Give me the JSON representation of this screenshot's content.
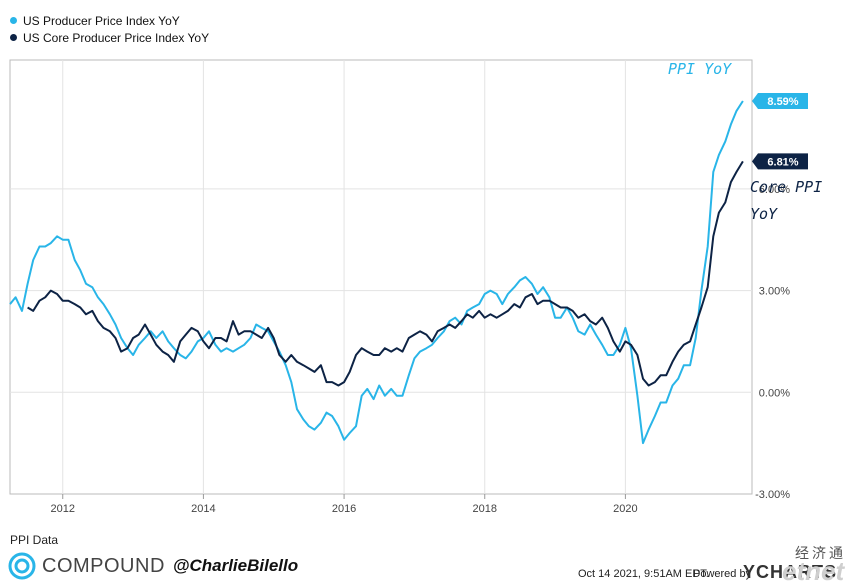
{
  "legend": {
    "items": [
      {
        "label": "US Producer Price Index YoY",
        "color": "#29b5e8"
      },
      {
        "label": "US Core Producer Price Index YoY",
        "color": "#0d2345"
      }
    ]
  },
  "annotations": {
    "ppi": "PPI YoY",
    "core_line1": "Core PPI",
    "core_line2": "YoY"
  },
  "footer": {
    "source": "PPI Data",
    "brand": "COMPOUND",
    "handle": "@CharlieBilello",
    "timestamp": "Oct 14 2021, 9:51AM EDT.",
    "powered": "Powered by",
    "provider": "YCHARTS",
    "watermark_cn": "经济通",
    "watermark_en": "etnet"
  },
  "chart_data": {
    "type": "line",
    "xlim": [
      2011.25,
      2021.8
    ],
    "ylim": [
      -3.0,
      9.8
    ],
    "x_ticks": [
      {
        "value": 2012,
        "label": "2012"
      },
      {
        "value": 2014,
        "label": "2014"
      },
      {
        "value": 2016,
        "label": "2016"
      },
      {
        "value": 2018,
        "label": "2018"
      },
      {
        "value": 2020,
        "label": "2020"
      }
    ],
    "y_ticks": [
      {
        "value": 6,
        "label": "6.00%"
      },
      {
        "value": 3,
        "label": "3.00%"
      },
      {
        "value": 0,
        "label": "0.00%"
      },
      {
        "value": -3,
        "label": "-3.00%"
      }
    ],
    "grid": true,
    "series": [
      {
        "name": "US Producer Price Index YoY",
        "color": "#29b5e8",
        "end_label": "8.59%",
        "points": [
          [
            2011.25,
            2.6
          ],
          [
            2011.33,
            2.8
          ],
          [
            2011.42,
            2.4
          ],
          [
            2011.5,
            3.2
          ],
          [
            2011.58,
            3.9
          ],
          [
            2011.67,
            4.3
          ],
          [
            2011.75,
            4.3
          ],
          [
            2011.83,
            4.4
          ],
          [
            2011.92,
            4.6
          ],
          [
            2012.0,
            4.5
          ],
          [
            2012.08,
            4.5
          ],
          [
            2012.17,
            3.9
          ],
          [
            2012.25,
            3.6
          ],
          [
            2012.33,
            3.2
          ],
          [
            2012.42,
            3.1
          ],
          [
            2012.5,
            2.8
          ],
          [
            2012.58,
            2.6
          ],
          [
            2012.67,
            2.3
          ],
          [
            2012.75,
            2.0
          ],
          [
            2012.83,
            1.6
          ],
          [
            2012.92,
            1.3
          ],
          [
            2013.0,
            1.1
          ],
          [
            2013.08,
            1.4
          ],
          [
            2013.17,
            1.6
          ],
          [
            2013.25,
            1.8
          ],
          [
            2013.33,
            1.6
          ],
          [
            2013.42,
            1.8
          ],
          [
            2013.5,
            1.5
          ],
          [
            2013.58,
            1.3
          ],
          [
            2013.67,
            1.1
          ],
          [
            2013.75,
            1.0
          ],
          [
            2013.83,
            1.2
          ],
          [
            2013.92,
            1.5
          ],
          [
            2014.0,
            1.6
          ],
          [
            2014.08,
            1.8
          ],
          [
            2014.17,
            1.4
          ],
          [
            2014.25,
            1.2
          ],
          [
            2014.33,
            1.3
          ],
          [
            2014.42,
            1.2
          ],
          [
            2014.5,
            1.3
          ],
          [
            2014.58,
            1.4
          ],
          [
            2014.67,
            1.6
          ],
          [
            2014.75,
            2.0
          ],
          [
            2014.83,
            1.9
          ],
          [
            2014.92,
            1.8
          ],
          [
            2015.0,
            1.5
          ],
          [
            2015.08,
            1.2
          ],
          [
            2015.17,
            0.8
          ],
          [
            2015.25,
            0.3
          ],
          [
            2015.33,
            -0.5
          ],
          [
            2015.42,
            -0.8
          ],
          [
            2015.5,
            -1.0
          ],
          [
            2015.58,
            -1.1
          ],
          [
            2015.67,
            -0.9
          ],
          [
            2015.75,
            -0.6
          ],
          [
            2015.83,
            -0.7
          ],
          [
            2015.92,
            -1.0
          ],
          [
            2016.0,
            -1.4
          ],
          [
            2016.08,
            -1.2
          ],
          [
            2016.17,
            -1.0
          ],
          [
            2016.25,
            -0.1
          ],
          [
            2016.33,
            0.1
          ],
          [
            2016.42,
            -0.2
          ],
          [
            2016.5,
            0.2
          ],
          [
            2016.58,
            -0.1
          ],
          [
            2016.67,
            0.1
          ],
          [
            2016.75,
            -0.1
          ],
          [
            2016.83,
            -0.1
          ],
          [
            2016.92,
            0.5
          ],
          [
            2017.0,
            1.0
          ],
          [
            2017.08,
            1.2
          ],
          [
            2017.17,
            1.3
          ],
          [
            2017.25,
            1.4
          ],
          [
            2017.33,
            1.6
          ],
          [
            2017.42,
            1.8
          ],
          [
            2017.5,
            2.1
          ],
          [
            2017.58,
            2.2
          ],
          [
            2017.67,
            2.0
          ],
          [
            2017.75,
            2.4
          ],
          [
            2017.83,
            2.5
          ],
          [
            2017.92,
            2.6
          ],
          [
            2018.0,
            2.9
          ],
          [
            2018.08,
            3.0
          ],
          [
            2018.17,
            2.9
          ],
          [
            2018.25,
            2.6
          ],
          [
            2018.33,
            2.9
          ],
          [
            2018.42,
            3.1
          ],
          [
            2018.5,
            3.3
          ],
          [
            2018.58,
            3.4
          ],
          [
            2018.67,
            3.2
          ],
          [
            2018.75,
            2.9
          ],
          [
            2018.83,
            3.1
          ],
          [
            2018.92,
            2.8
          ],
          [
            2019.0,
            2.2
          ],
          [
            2019.08,
            2.2
          ],
          [
            2019.17,
            2.5
          ],
          [
            2019.25,
            2.2
          ],
          [
            2019.33,
            1.8
          ],
          [
            2019.42,
            1.7
          ],
          [
            2019.5,
            2.0
          ],
          [
            2019.58,
            1.7
          ],
          [
            2019.67,
            1.4
          ],
          [
            2019.75,
            1.1
          ],
          [
            2019.83,
            1.1
          ],
          [
            2019.92,
            1.4
          ],
          [
            2020.0,
            1.9
          ],
          [
            2020.08,
            1.3
          ],
          [
            2020.17,
            -0.1
          ],
          [
            2020.25,
            -1.5
          ],
          [
            2020.33,
            -1.1
          ],
          [
            2020.42,
            -0.7
          ],
          [
            2020.5,
            -0.3
          ],
          [
            2020.58,
            -0.3
          ],
          [
            2020.67,
            0.2
          ],
          [
            2020.75,
            0.4
          ],
          [
            2020.83,
            0.8
          ],
          [
            2020.92,
            0.8
          ],
          [
            2021.0,
            1.6
          ],
          [
            2021.08,
            3.0
          ],
          [
            2021.17,
            4.3
          ],
          [
            2021.25,
            6.5
          ],
          [
            2021.33,
            7.0
          ],
          [
            2021.42,
            7.4
          ],
          [
            2021.5,
            7.9
          ],
          [
            2021.58,
            8.3
          ],
          [
            2021.67,
            8.59
          ]
        ]
      },
      {
        "name": "US Core Producer Price Index YoY",
        "color": "#0d2345",
        "end_label": "6.81%",
        "points": [
          [
            2011.5,
            2.5
          ],
          [
            2011.58,
            2.4
          ],
          [
            2011.67,
            2.7
          ],
          [
            2011.75,
            2.8
          ],
          [
            2011.83,
            3.0
          ],
          [
            2011.92,
            2.9
          ],
          [
            2012.0,
            2.7
          ],
          [
            2012.08,
            2.7
          ],
          [
            2012.17,
            2.6
          ],
          [
            2012.25,
            2.5
          ],
          [
            2012.33,
            2.3
          ],
          [
            2012.42,
            2.4
          ],
          [
            2012.5,
            2.1
          ],
          [
            2012.58,
            1.9
          ],
          [
            2012.67,
            1.8
          ],
          [
            2012.75,
            1.6
          ],
          [
            2012.83,
            1.2
          ],
          [
            2012.92,
            1.3
          ],
          [
            2013.0,
            1.6
          ],
          [
            2013.08,
            1.7
          ],
          [
            2013.17,
            2.0
          ],
          [
            2013.25,
            1.7
          ],
          [
            2013.33,
            1.4
          ],
          [
            2013.42,
            1.2
          ],
          [
            2013.5,
            1.1
          ],
          [
            2013.58,
            0.9
          ],
          [
            2013.67,
            1.5
          ],
          [
            2013.75,
            1.7
          ],
          [
            2013.83,
            1.9
          ],
          [
            2013.92,
            1.8
          ],
          [
            2014.0,
            1.5
          ],
          [
            2014.08,
            1.3
          ],
          [
            2014.17,
            1.6
          ],
          [
            2014.25,
            1.6
          ],
          [
            2014.33,
            1.5
          ],
          [
            2014.42,
            2.1
          ],
          [
            2014.5,
            1.7
          ],
          [
            2014.58,
            1.8
          ],
          [
            2014.67,
            1.8
          ],
          [
            2014.75,
            1.7
          ],
          [
            2014.83,
            1.6
          ],
          [
            2014.92,
            1.9
          ],
          [
            2015.0,
            1.6
          ],
          [
            2015.08,
            1.1
          ],
          [
            2015.17,
            0.9
          ],
          [
            2015.25,
            1.1
          ],
          [
            2015.33,
            0.9
          ],
          [
            2015.42,
            0.8
          ],
          [
            2015.5,
            0.7
          ],
          [
            2015.58,
            0.6
          ],
          [
            2015.67,
            0.8
          ],
          [
            2015.75,
            0.3
          ],
          [
            2015.83,
            0.3
          ],
          [
            2015.92,
            0.2
          ],
          [
            2016.0,
            0.3
          ],
          [
            2016.08,
            0.6
          ],
          [
            2016.17,
            1.1
          ],
          [
            2016.25,
            1.3
          ],
          [
            2016.33,
            1.2
          ],
          [
            2016.42,
            1.1
          ],
          [
            2016.5,
            1.1
          ],
          [
            2016.58,
            1.3
          ],
          [
            2016.67,
            1.2
          ],
          [
            2016.75,
            1.3
          ],
          [
            2016.83,
            1.2
          ],
          [
            2016.92,
            1.6
          ],
          [
            2017.0,
            1.7
          ],
          [
            2017.08,
            1.8
          ],
          [
            2017.17,
            1.7
          ],
          [
            2017.25,
            1.5
          ],
          [
            2017.33,
            1.8
          ],
          [
            2017.42,
            1.9
          ],
          [
            2017.5,
            2.0
          ],
          [
            2017.58,
            1.9
          ],
          [
            2017.67,
            2.1
          ],
          [
            2017.75,
            2.3
          ],
          [
            2017.83,
            2.2
          ],
          [
            2017.92,
            2.4
          ],
          [
            2018.0,
            2.2
          ],
          [
            2018.08,
            2.3
          ],
          [
            2018.17,
            2.2
          ],
          [
            2018.25,
            2.3
          ],
          [
            2018.33,
            2.4
          ],
          [
            2018.42,
            2.6
          ],
          [
            2018.5,
            2.5
          ],
          [
            2018.58,
            2.8
          ],
          [
            2018.67,
            2.9
          ],
          [
            2018.75,
            2.6
          ],
          [
            2018.83,
            2.7
          ],
          [
            2018.92,
            2.7
          ],
          [
            2019.0,
            2.6
          ],
          [
            2019.08,
            2.5
          ],
          [
            2019.17,
            2.5
          ],
          [
            2019.25,
            2.4
          ],
          [
            2019.33,
            2.2
          ],
          [
            2019.42,
            2.3
          ],
          [
            2019.5,
            2.1
          ],
          [
            2019.58,
            2.0
          ],
          [
            2019.67,
            2.2
          ],
          [
            2019.75,
            1.9
          ],
          [
            2019.83,
            1.5
          ],
          [
            2019.92,
            1.2
          ],
          [
            2020.0,
            1.5
          ],
          [
            2020.08,
            1.4
          ],
          [
            2020.17,
            1.1
          ],
          [
            2020.25,
            0.4
          ],
          [
            2020.33,
            0.2
          ],
          [
            2020.42,
            0.3
          ],
          [
            2020.5,
            0.5
          ],
          [
            2020.58,
            0.5
          ],
          [
            2020.67,
            0.9
          ],
          [
            2020.75,
            1.2
          ],
          [
            2020.83,
            1.4
          ],
          [
            2020.92,
            1.5
          ],
          [
            2021.0,
            2.0
          ],
          [
            2021.08,
            2.5
          ],
          [
            2021.17,
            3.1
          ],
          [
            2021.25,
            4.6
          ],
          [
            2021.33,
            5.3
          ],
          [
            2021.42,
            5.6
          ],
          [
            2021.5,
            6.2
          ],
          [
            2021.58,
            6.5
          ],
          [
            2021.67,
            6.81
          ]
        ]
      }
    ]
  }
}
